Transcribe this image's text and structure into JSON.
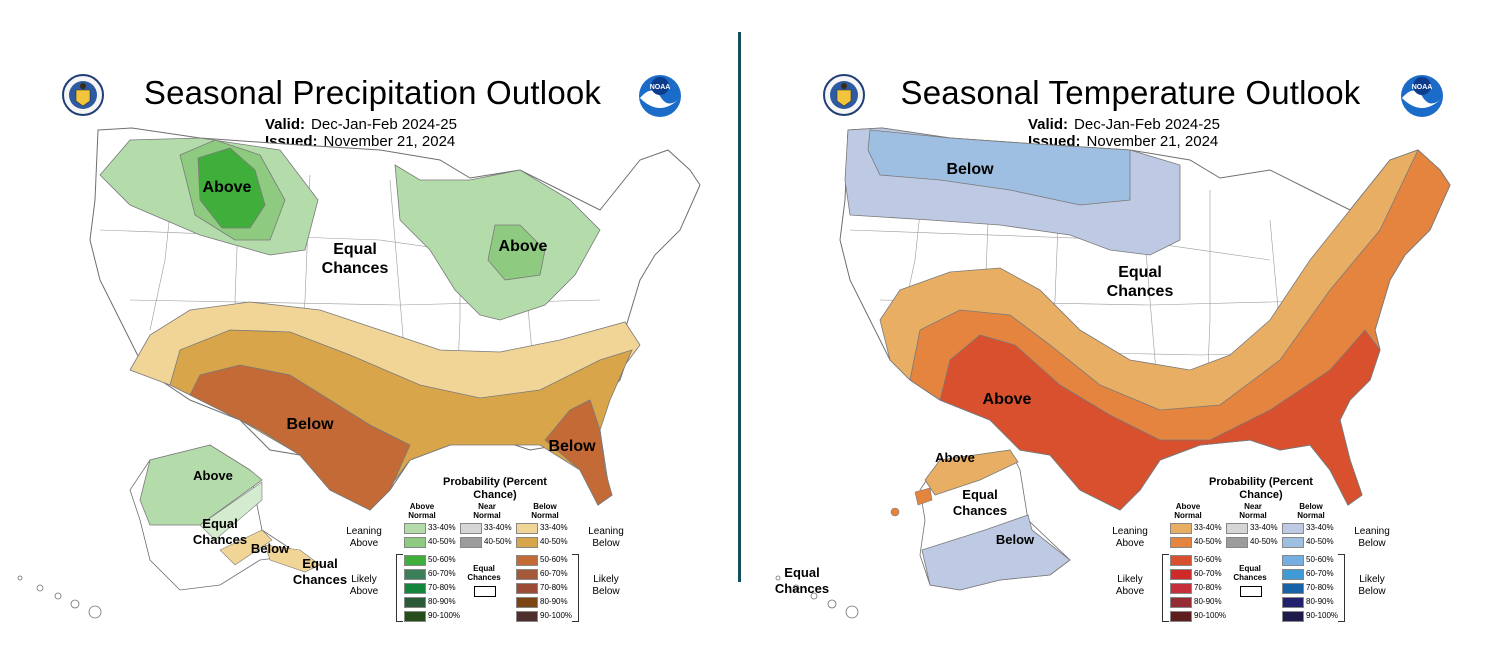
{
  "precip": {
    "title": "Seasonal Precipitation Outlook",
    "valid_label": "Valid:",
    "valid_value": "Dec-Jan-Feb 2024-25",
    "issued_label": "Issued:",
    "issued_value": "November 21, 2024",
    "labels": {
      "above_nw": "Above",
      "equal_center": "Equal Chances",
      "above_gl": "Above",
      "below_sw": "Below",
      "below_se": "Below",
      "ak_above": "Above",
      "ak_equal": "Equal Chances",
      "ak_below": "Below",
      "hi_equal": "Equal Chances"
    }
  },
  "temp": {
    "title": "Seasonal Temperature Outlook",
    "valid_label": "Valid:",
    "valid_value": "Dec-Jan-Feb 2024-25",
    "issued_label": "Issued:",
    "issued_value": "November 21, 2024",
    "labels": {
      "below_n": "Below",
      "equal_center": "Equal Chances",
      "above_s": "Above",
      "ak_above": "Above",
      "ak_equal": "Equal Chances",
      "ak_below": "Below",
      "hi_equal": "Equal Chances"
    }
  },
  "legend": {
    "title": "Probability (Percent Chance)",
    "col_above": "Above Normal",
    "col_near": "Near Normal",
    "col_below": "Below Normal",
    "leaning_above": "Leaning Above",
    "leaning_below": "Leaning Below",
    "likely_above": "Likely Above",
    "likely_below": "Likely Below",
    "equal_chances": "Equal Chances",
    "ranges_above": [
      "33-40%",
      "40-50%",
      "50-60%",
      "60-70%",
      "70-80%",
      "80-90%",
      "90-100%"
    ],
    "ranges_near": [
      "33-40%",
      "40-50%"
    ],
    "ranges_below": [
      "33-40%",
      "40-50%",
      "50-60%",
      "60-70%",
      "70-80%",
      "80-90%",
      "90-100%"
    ]
  },
  "colors": {
    "precip_above": [
      "#b4dcab",
      "#8ecb81",
      "#3fae3b",
      "#3c7d5a",
      "#15853c",
      "#2b5a36",
      "#254d1a"
    ],
    "precip_below": [
      "#f1d597",
      "#d8a54a",
      "#c46a36",
      "#a45a3a",
      "#9b4b36",
      "#7b4513",
      "#4f2e2e"
    ],
    "temp_above": [
      "#e8ae64",
      "#e4843f",
      "#d8502d",
      "#cf2a2a",
      "#c52f3b",
      "#952b33",
      "#5e1c1e"
    ],
    "temp_below": [
      "#bec9e4",
      "#9ebfe1",
      "#75aee1",
      "#3f9ad5",
      "#1862a8",
      "#23206e",
      "#1e1b4a"
    ],
    "near": [
      "#d6d6d6",
      "#9c9c9c"
    ],
    "divider": "#124f5c"
  }
}
